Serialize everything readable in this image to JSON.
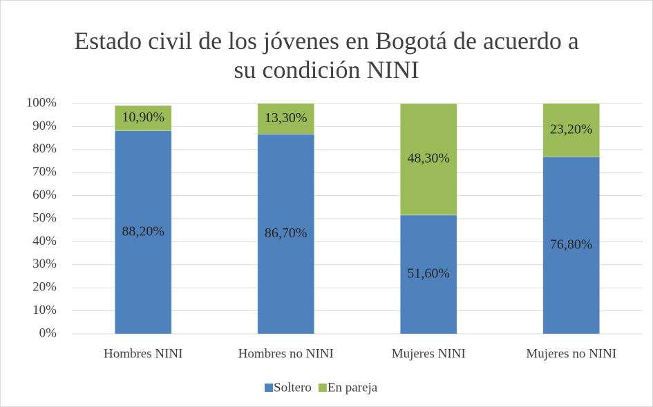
{
  "chart_data": {
    "type": "stacked_bar",
    "title": "Estado civil de los jóvenes en Bogotá de acuerdo a su condición NINI",
    "categories": [
      "Hombres NINI",
      "Hombres no NINI",
      "Mujeres NINI",
      "Mujeres no NINI"
    ],
    "series": [
      {
        "name": "Soltero",
        "color": "#4f81bd",
        "values": [
          88.2,
          86.7,
          51.6,
          76.8
        ],
        "value_labels": [
          "88,20%",
          "86,70%",
          "51,60%",
          "76,80%"
        ]
      },
      {
        "name": "En pareja",
        "color": "#9bbb59",
        "values": [
          10.9,
          13.3,
          48.3,
          23.2
        ],
        "value_labels": [
          "10,90%",
          "13,30%",
          "48,30%",
          "23,20%"
        ]
      }
    ],
    "ylim": [
      0,
      100
    ],
    "yticks": [
      {
        "value": 0,
        "label": "0%"
      },
      {
        "value": 10,
        "label": "10%"
      },
      {
        "value": 20,
        "label": "20%"
      },
      {
        "value": 30,
        "label": "30%"
      },
      {
        "value": 40,
        "label": "40%"
      },
      {
        "value": 50,
        "label": "50%"
      },
      {
        "value": 60,
        "label": "60%"
      },
      {
        "value": 70,
        "label": "70%"
      },
      {
        "value": 80,
        "label": "80%"
      },
      {
        "value": 90,
        "label": "90%"
      },
      {
        "value": 100,
        "label": "100%"
      }
    ],
    "grid": true,
    "legend": "bottom"
  }
}
